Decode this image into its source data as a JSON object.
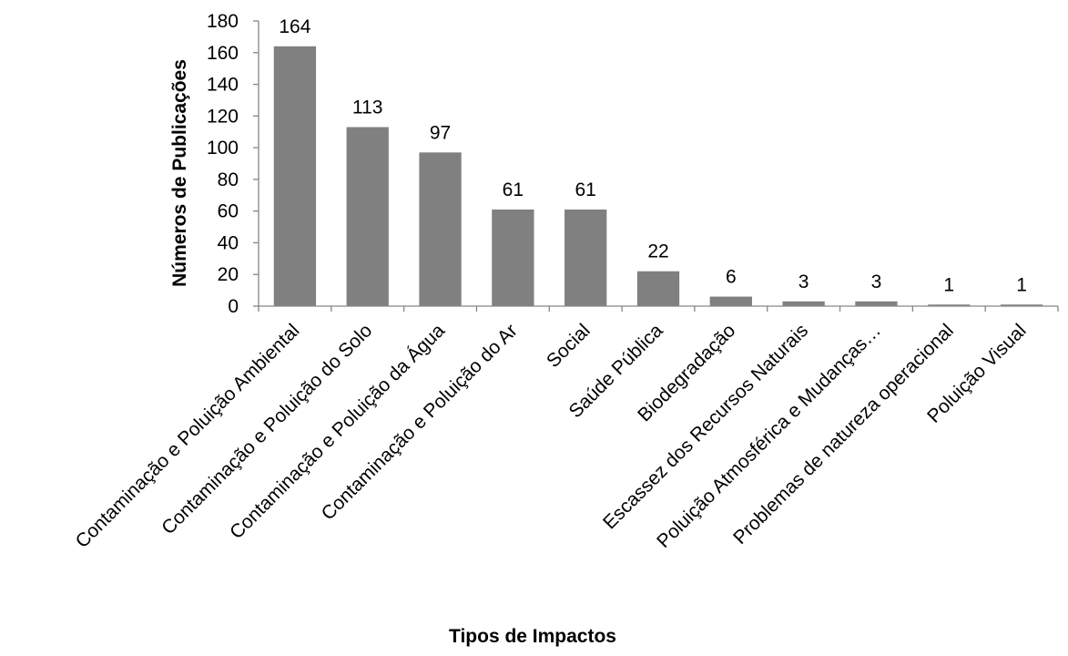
{
  "chart_data": {
    "type": "bar",
    "title": "",
    "xlabel": "Tipos de Impactos",
    "ylabel": "Números de Publicações",
    "ylim": [
      0,
      180
    ],
    "yticks": [
      0,
      20,
      40,
      60,
      80,
      100,
      120,
      140,
      160,
      180
    ],
    "grid": false,
    "legend": "none",
    "bar_color": "#808080",
    "categories": [
      "Contaminação e Poluição Ambiental",
      "Contaminação e Poluição do Solo",
      "Contaminação e Poluição da Água",
      "Contaminação e Poluição do Ar",
      "Social",
      "Saúde Pública",
      "Biodegradação",
      "Escassez dos Recursos Naturais",
      "Poluição Atmosférica e Mudanças…",
      "Problemas de natureza operacional",
      "Poluição Visual"
    ],
    "values": [
      164,
      113,
      97,
      61,
      61,
      22,
      6,
      3,
      3,
      1,
      1
    ]
  }
}
